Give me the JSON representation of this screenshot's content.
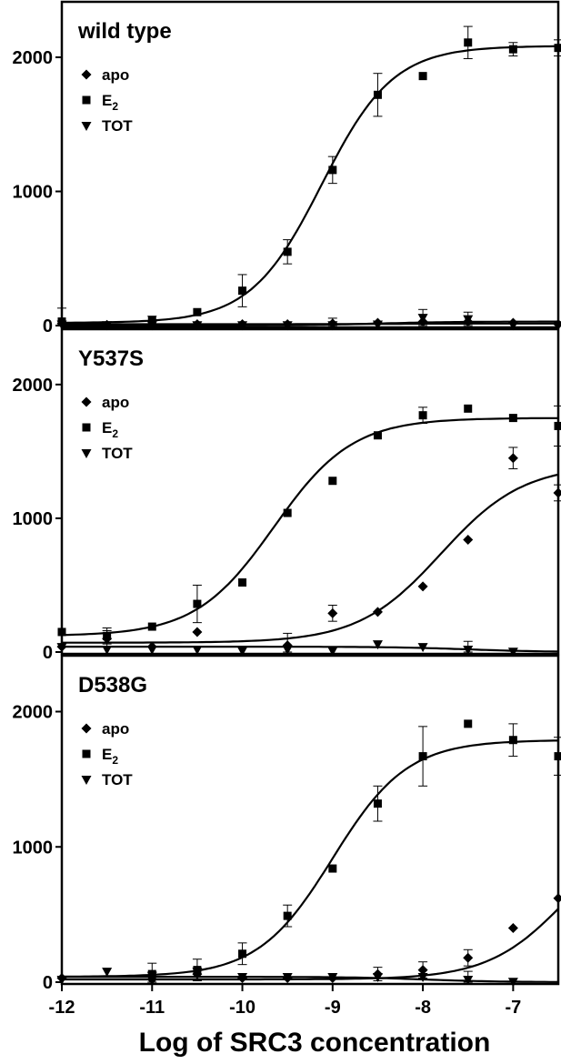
{
  "chart_data": {
    "type": "scatter",
    "xlabel": "Log of SRC3 concentration",
    "x_ticks": [
      "-12",
      "-11",
      "-10",
      "-9",
      "-8",
      "-7"
    ],
    "x_tick_values": [
      -12,
      -11,
      -10,
      -9,
      -8,
      -7
    ],
    "xlim": [
      -12,
      -6.5
    ],
    "ylim": [
      0,
      2400
    ],
    "y_ticks": [
      "0",
      "1000",
      "2000"
    ],
    "y_tick_values": [
      0,
      1000,
      2000
    ],
    "legend": [
      "apo",
      "E",
      "TOT"
    ],
    "legend_subscript": [
      "",
      "2",
      ""
    ],
    "legend_position": "top-left",
    "colors": {
      "series": "#000000",
      "frame": "#000000"
    },
    "panels": [
      {
        "title": "wild type",
        "series": [
          {
            "name": "apo",
            "marker": "diamond",
            "x": [
              -12,
              -11.5,
              -11,
              -10.5,
              -10,
              -9.5,
              -9,
              -8.5,
              -8,
              -7.5,
              -7,
              -6.5
            ],
            "y": [
              15,
              5,
              10,
              10,
              10,
              10,
              15,
              20,
              30,
              30,
              20,
              10
            ],
            "err": [
              0,
              0,
              0,
              0,
              0,
              0,
              0,
              0,
              0,
              0,
              0,
              0
            ],
            "fit": {
              "bottom": 0,
              "top": 30,
              "logec50": -8.5,
              "hill": 1
            }
          },
          {
            "name": "E2",
            "marker": "square",
            "x": [
              -12,
              -11,
              -10.5,
              -10,
              -9.5,
              -9,
              -8.5,
              -8,
              -7.5,
              -7,
              -6.5
            ],
            "y": [
              30,
              40,
              100,
              260,
              550,
              1160,
              1720,
              1860,
              2110,
              2060,
              2070
            ],
            "err": [
              100,
              30,
              0,
              120,
              90,
              100,
              160,
              0,
              120,
              50,
              60
            ],
            "fit": {
              "bottom": 20,
              "top": 2085,
              "logec50": -9.12,
              "hill": 1.1
            }
          },
          {
            "name": "TOT",
            "marker": "triangle-down",
            "x": [
              -12,
              -11.5,
              -11,
              -10.5,
              -10,
              -9.5,
              -9,
              -8.5,
              -8,
              -7.5,
              -7,
              -6.5
            ],
            "y": [
              10,
              5,
              5,
              5,
              5,
              5,
              5,
              10,
              60,
              50,
              5,
              5
            ],
            "err": [
              0,
              0,
              0,
              0,
              0,
              0,
              50,
              0,
              60,
              50,
              0,
              0
            ],
            "fit": {
              "bottom": 10,
              "top": 15,
              "logec50": -8.5,
              "hill": 1
            }
          }
        ]
      },
      {
        "title": "Y537S",
        "series": [
          {
            "name": "apo",
            "marker": "diamond",
            "x": [
              -12,
              -11.5,
              -11,
              -10.5,
              -9.5,
              -9,
              -8.5,
              -8,
              -7.5,
              -7,
              -6.5
            ],
            "y": [
              40,
              100,
              40,
              150,
              50,
              290,
              300,
              490,
              840,
              1450,
              1190
            ],
            "err": [
              0,
              60,
              0,
              0,
              90,
              60,
              0,
              0,
              0,
              80,
              60
            ],
            "fit": {
              "bottom": 70,
              "top": 1400,
              "logec50": -7.8,
              "hill": 0.95
            }
          },
          {
            "name": "E2",
            "marker": "square",
            "x": [
              -12,
              -11.5,
              -11,
              -10.5,
              -10,
              -9.5,
              -9,
              -8.5,
              -8,
              -7.5,
              -7,
              -6.5
            ],
            "y": [
              150,
              120,
              190,
              360,
              520,
              1040,
              1280,
              1620,
              1770,
              1820,
              1750,
              1690
            ],
            "err": [
              0,
              60,
              0,
              140,
              0,
              0,
              0,
              0,
              60,
              0,
              0,
              150
            ],
            "fit": {
              "bottom": 120,
              "top": 1750,
              "logec50": -9.65,
              "hill": 1
            }
          },
          {
            "name": "TOT",
            "marker": "triangle-down",
            "x": [
              -12,
              -11.5,
              -11,
              -10.5,
              -10,
              -9.5,
              -9,
              -8.5,
              -8,
              -7.5,
              -7
            ],
            "y": [
              40,
              20,
              20,
              20,
              10,
              20,
              10,
              60,
              40,
              20,
              5
            ],
            "err": [
              0,
              0,
              0,
              0,
              0,
              0,
              0,
              0,
              0,
              60,
              0
            ],
            "fit": {
              "bottom": 40,
              "top": 0,
              "logec50": -7.5,
              "hill": 1
            }
          }
        ]
      },
      {
        "title": "D538G",
        "series": [
          {
            "name": "apo",
            "marker": "diamond",
            "x": [
              -12,
              -11,
              -10.5,
              -10,
              -9.5,
              -9,
              -8.5,
              -8,
              -7.5,
              -7,
              -6.5
            ],
            "y": [
              30,
              20,
              60,
              30,
              30,
              30,
              60,
              90,
              180,
              400,
              620
            ],
            "err": [
              0,
              0,
              0,
              0,
              0,
              0,
              50,
              60,
              60,
              0,
              0
            ],
            "fit": {
              "bottom": 20,
              "top": 1200,
              "logec50": -6.4,
              "hill": 1
            }
          },
          {
            "name": "E2",
            "marker": "square",
            "x": [
              -11,
              -10.5,
              -10,
              -9.5,
              -9,
              -8.5,
              -8,
              -7.5,
              -7,
              -6.5
            ],
            "y": [
              60,
              90,
              210,
              490,
              840,
              1320,
              1670,
              1910,
              1790,
              1670
            ],
            "err": [
              80,
              80,
              80,
              80,
              0,
              130,
              220,
              0,
              120,
              140
            ],
            "fit": {
              "bottom": 40,
              "top": 1790,
              "logec50": -9.0,
              "hill": 1.05
            }
          },
          {
            "name": "TOT",
            "marker": "triangle-down",
            "x": [
              -12,
              -11.5,
              -11,
              -10.5,
              -10,
              -9.5,
              -9,
              -8.5,
              -8,
              -7.5,
              -7
            ],
            "y": [
              20,
              80,
              50,
              80,
              40,
              40,
              40,
              40,
              40,
              20,
              5
            ],
            "err": [
              0,
              0,
              0,
              0,
              0,
              0,
              0,
              0,
              0,
              60,
              0
            ],
            "fit": {
              "bottom": 40,
              "top": 0,
              "logec50": -8.0,
              "hill": 1
            }
          }
        ]
      }
    ]
  }
}
